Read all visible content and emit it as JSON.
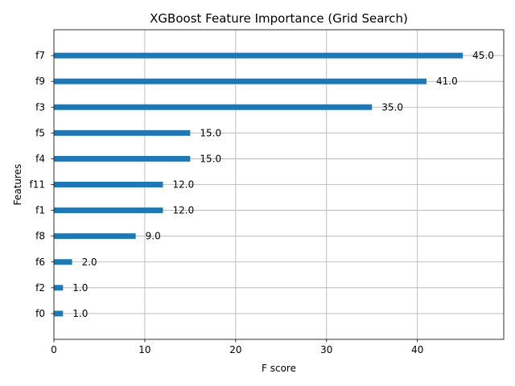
{
  "chart_data": {
    "type": "bar",
    "orientation": "horizontal",
    "title": "XGBoost Feature Importance (Grid Search)",
    "xlabel": "F score",
    "ylabel": "Features",
    "categories": [
      "f0",
      "f2",
      "f6",
      "f8",
      "f1",
      "f11",
      "f4",
      "f5",
      "f3",
      "f9",
      "f7"
    ],
    "values": [
      1.0,
      1.0,
      2.0,
      9.0,
      12.0,
      12.0,
      15.0,
      15.0,
      35.0,
      41.0,
      45.0
    ],
    "data_labels": [
      "1.0",
      "1.0",
      "2.0",
      "9.0",
      "12.0",
      "12.0",
      "15.0",
      "15.0",
      "35.0",
      "41.0",
      "45.0"
    ],
    "xlim": [
      0,
      49.5
    ],
    "xticks": [
      0,
      10,
      20,
      30,
      40
    ],
    "grid": true,
    "bar_color": "#1f77b4"
  }
}
